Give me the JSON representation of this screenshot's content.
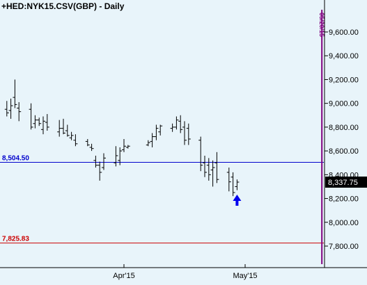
{
  "chart_data": {
    "type": "ohlc",
    "title": "+HED:NYK15.CSV(GBP) - Daily",
    "y_axis": {
      "position": "right",
      "range": [
        7700,
        9900
      ],
      "ticks": [
        7800,
        8000,
        8200,
        8400,
        8600,
        8800,
        9000,
        9200,
        9400,
        9600
      ],
      "tick_labels": [
        "7,800.00",
        "8,000.00",
        "8,200.00",
        "8,400.00",
        "8,600.00",
        "8,800.00",
        "9,000.00",
        "9,200.00",
        "9,400.00",
        "9,600.00"
      ]
    },
    "x_axis": {
      "tick_labels": [
        "Apr'15",
        "May'15"
      ],
      "tick_dates": [
        "2015-04-01",
        "2015-05-01"
      ]
    },
    "grid": false,
    "last_price": "8,337.75",
    "horizontal_lines": [
      {
        "label": "8,504.50",
        "value": 8504.5,
        "color": "#0000cc"
      },
      {
        "label": "7,825.83",
        "value": 7825.83,
        "color": "#cc0000"
      }
    ],
    "vertical_marker": {
      "label": "05/20/15",
      "date": "2015-05-20",
      "color": "#800080"
    },
    "annotation": {
      "type": "arrow-up",
      "date": "2015-04-29",
      "color": "#0000ee"
    },
    "dates": [
      "2015-03-03",
      "2015-03-04",
      "2015-03-05",
      "2015-03-06",
      "2015-03-09",
      "2015-03-10",
      "2015-03-11",
      "2015-03-12",
      "2015-03-13",
      "2015-03-16",
      "2015-03-17",
      "2015-03-18",
      "2015-03-19",
      "2015-03-20",
      "2015-03-23",
      "2015-03-24",
      "2015-03-25",
      "2015-03-26",
      "2015-03-27",
      "2015-03-30",
      "2015-03-31",
      "2015-04-01",
      "2015-04-02",
      "2015-04-07",
      "2015-04-08",
      "2015-04-09",
      "2015-04-10",
      "2015-04-13",
      "2015-04-14",
      "2015-04-15",
      "2015-04-16",
      "2015-04-17",
      "2015-04-20",
      "2015-04-21",
      "2015-04-22",
      "2015-04-23",
      "2015-04-24",
      "2015-04-27",
      "2015-04-28",
      "2015-04-29"
    ],
    "high": [
      9020,
      9040,
      9200,
      9010,
      9000,
      8900,
      8880,
      8890,
      8910,
      8860,
      8870,
      8820,
      8760,
      8740,
      8700,
      8660,
      8560,
      8510,
      8580,
      8640,
      8630,
      8700,
      8650,
      8690,
      8750,
      8820,
      8820,
      8830,
      8890,
      8900,
      8850,
      8830,
      8720,
      8560,
      8540,
      8520,
      8590,
      8460,
      8420,
      8360
    ],
    "low": [
      8890,
      8870,
      8960,
      8850,
      8780,
      8790,
      8810,
      8740,
      8770,
      8720,
      8740,
      8720,
      8690,
      8640,
      8640,
      8600,
      8460,
      8350,
      8440,
      8470,
      8480,
      8590,
      8620,
      8640,
      8630,
      8690,
      8730,
      8760,
      8780,
      8750,
      8650,
      8650,
      8430,
      8380,
      8350,
      8300,
      8330,
      8260,
      8220,
      8270
    ],
    "open": [
      8950,
      8940,
      9050,
      8960,
      8950,
      8830,
      8860,
      8780,
      8840,
      8760,
      8790,
      8770,
      8710,
      8690,
      8680,
      8630,
      8520,
      8480,
      8460,
      8500,
      8520,
      8610,
      8630,
      8650,
      8680,
      8720,
      8760,
      8790,
      8800,
      8850,
      8800,
      8790,
      8690,
      8500,
      8480,
      8440,
      8500,
      8420,
      8380,
      8300
    ],
    "close": [
      8920,
      8980,
      8990,
      8930,
      8800,
      8860,
      8830,
      8850,
      8800,
      8790,
      8750,
      8730,
      8730,
      8660,
      8650,
      8620,
      8480,
      8420,
      8540,
      8560,
      8600,
      8640,
      8640,
      8670,
      8720,
      8790,
      8810,
      8800,
      8860,
      8780,
      8690,
      8700,
      8480,
      8420,
      8400,
      8460,
      8360,
      8340,
      8250,
      8337.75
    ]
  },
  "colors": {
    "background": "#e8f4fa",
    "bars": "#000000",
    "axis": "#000000",
    "price_label_bg": "#000000",
    "price_label_text": "#ffffff"
  }
}
